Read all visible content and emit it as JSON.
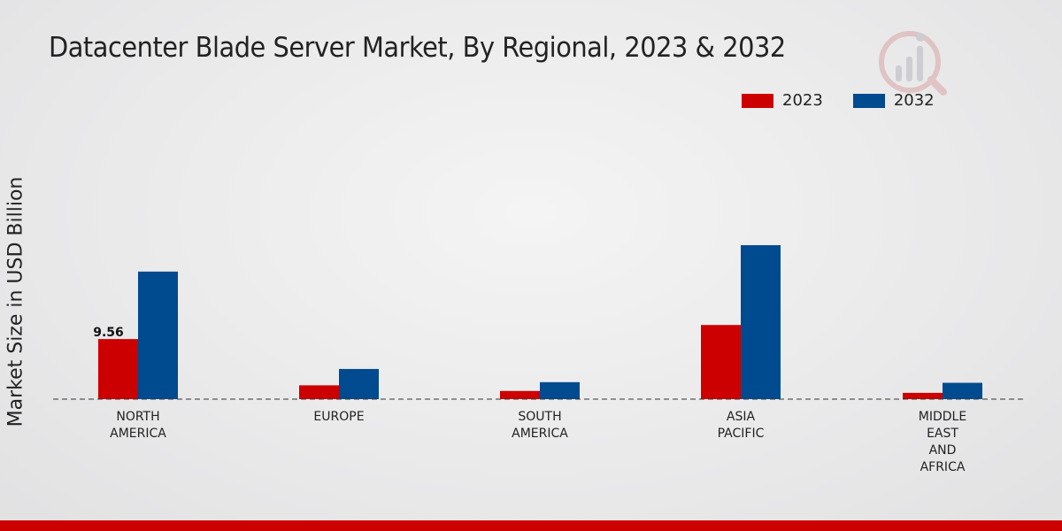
{
  "title": "Datacenter Blade Server Market, By Regional, 2023 & 2032",
  "colors": {
    "series_2023": "#cc0000",
    "series_2032": "#004a8f",
    "footer": "#cc0000"
  },
  "chart_data": {
    "type": "bar",
    "title": "Datacenter Blade Server Market, By Regional, 2023 & 2032",
    "xlabel": "",
    "ylabel": "Market Size in USD Billion",
    "ylim": [
      0,
      35
    ],
    "grid": false,
    "legend_position": "top-right",
    "categories": [
      [
        "NORTH",
        "AMERICA"
      ],
      [
        "EUROPE"
      ],
      [
        "SOUTH",
        "AMERICA"
      ],
      [
        "ASIA",
        "PACIFIC"
      ],
      [
        "MIDDLE",
        "EAST",
        "AND",
        "AFRICA"
      ]
    ],
    "series": [
      {
        "name": "2023",
        "color": "#cc0000",
        "values": [
          9.56,
          2.2,
          1.3,
          11.8,
          1.0
        ]
      },
      {
        "name": "2032",
        "color": "#004a8f",
        "values": [
          20.3,
          4.8,
          2.7,
          24.5,
          2.6
        ]
      }
    ],
    "data_labels": [
      {
        "series": 0,
        "index": 0,
        "text": "9.56"
      }
    ]
  }
}
